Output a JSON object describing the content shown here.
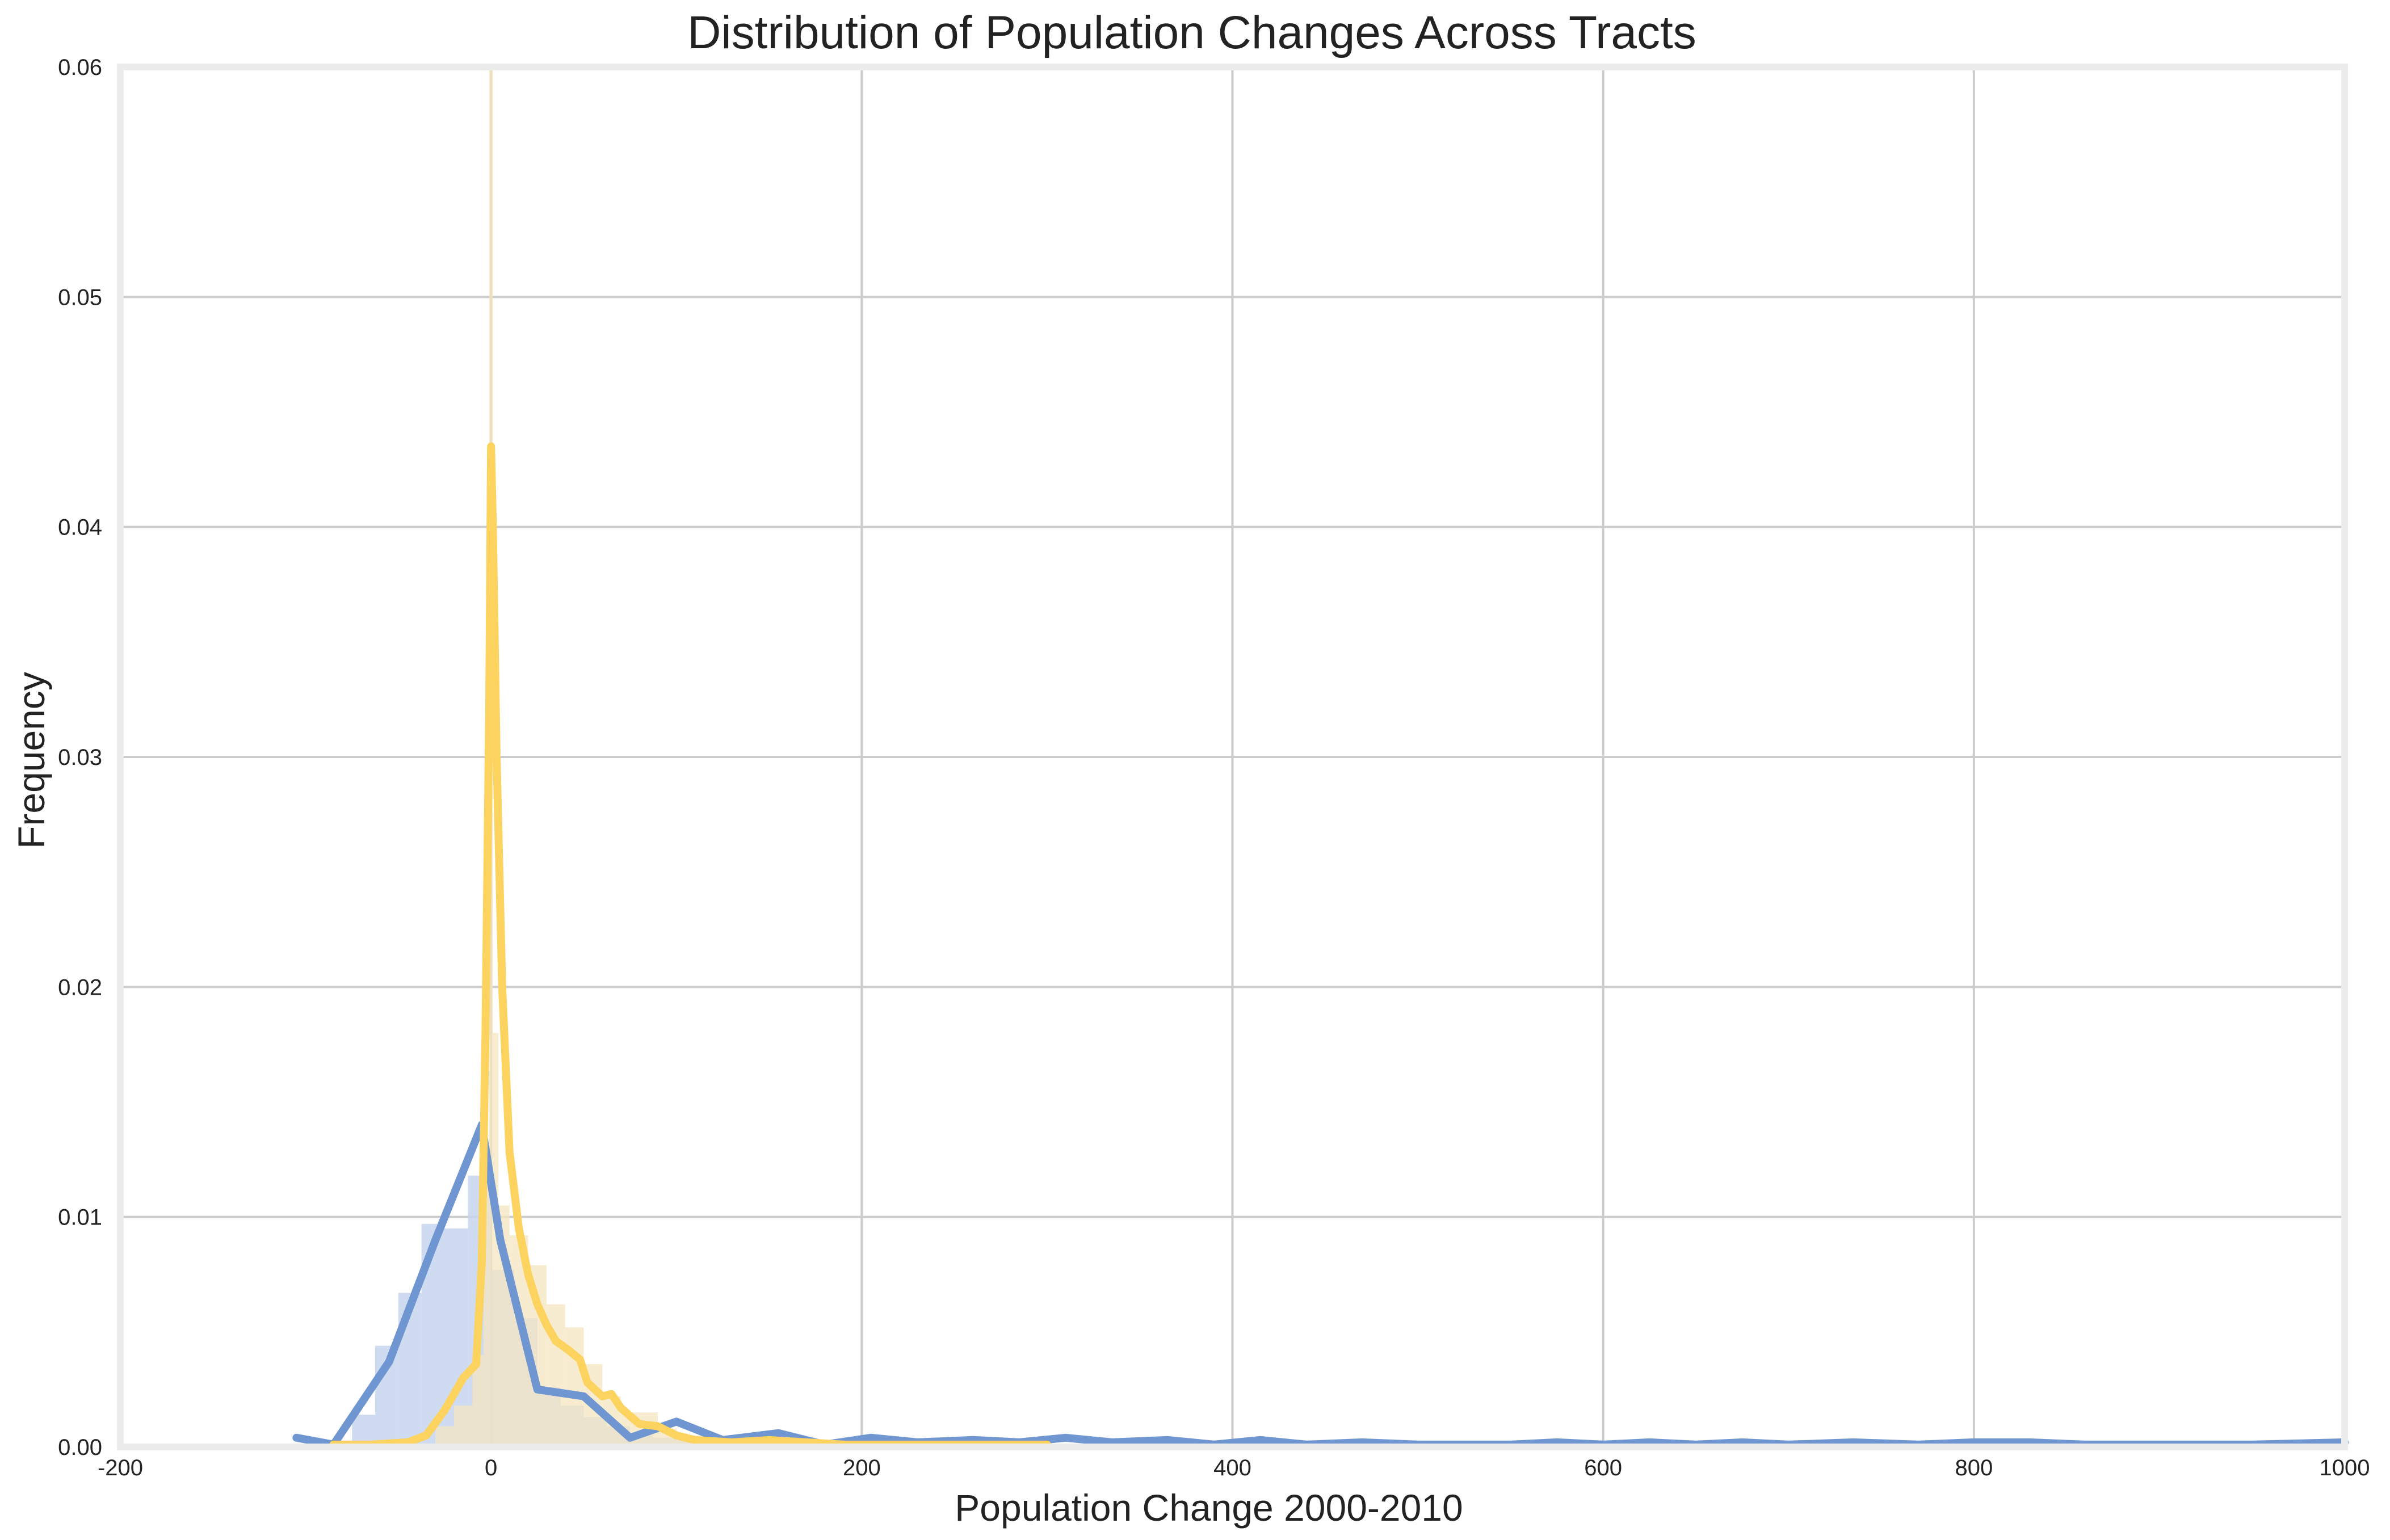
{
  "chart_data": {
    "type": "histogram-kde",
    "title": "Distribution of Population Changes Across Tracts",
    "xlabel": "Population Change 2000-2010",
    "ylabel": "Frequency",
    "xlim": [
      -200,
      1000
    ],
    "ylim": [
      0,
      0.06
    ],
    "x_ticks": [
      "-200",
      "0",
      "200",
      "400",
      "600",
      "800",
      "1000"
    ],
    "y_ticks": [
      "0.00",
      "0.01",
      "0.02",
      "0.03",
      "0.04",
      "0.05",
      "0.06"
    ],
    "grid": true,
    "legend": "none",
    "colors": {
      "series_a": "#6f96d0",
      "series_a_hist": "#c6d5ef",
      "series_b": "#fdd35f",
      "series_b_hist": "#f4e6c0"
    },
    "series": [
      {
        "histogram": {
          "bins": [
            {
              "x0": -75,
              "x1": -62.5,
              "value": 0.0014
            },
            {
              "x0": -62.5,
              "x1": -50,
              "value": 0.0044
            },
            {
              "x0": -50,
              "x1": -37.5,
              "value": 0.0067
            },
            {
              "x0": -37.5,
              "x1": -25,
              "value": 0.0097
            },
            {
              "x0": -25,
              "x1": -12.5,
              "value": 0.0095
            },
            {
              "x0": -12.5,
              "x1": 0,
              "value": 0.0118
            },
            {
              "x0": 0,
              "x1": 12.5,
              "value": 0.0077
            },
            {
              "x0": 12.5,
              "x1": 25,
              "value": 0.0056
            },
            {
              "x0": 25,
              "x1": 37.5,
              "value": 0.0026
            },
            {
              "x0": 37.5,
              "x1": 50,
              "value": 0.0018
            },
            {
              "x0": 50,
              "x1": 62.5,
              "value": 0.0013
            },
            {
              "x0": 62.5,
              "x1": 75,
              "value": 0.0009
            },
            {
              "x0": 75,
              "x1": 87.5,
              "value": 0.0005
            },
            {
              "x0": 87.5,
              "x1": 100,
              "value": 0.0004
            },
            {
              "x0": 100,
              "x1": 112.5,
              "value": 0.0003
            },
            {
              "x0": 112.5,
              "x1": 125,
              "value": 0.0002
            },
            {
              "x0": 125,
              "x1": 150,
              "value": 0.0002
            },
            {
              "x0": 150,
              "x1": 175,
              "value": 0.0001
            }
          ]
        },
        "kde": [
          [
            -105,
            0.0004
          ],
          [
            -85,
            0.0001
          ],
          [
            -55,
            0.0037
          ],
          [
            -30,
            0.009
          ],
          [
            -5,
            0.014
          ],
          [
            5,
            0.009
          ],
          [
            25,
            0.0025
          ],
          [
            50,
            0.0022
          ],
          [
            75,
            0.0004
          ],
          [
            100,
            0.0011
          ],
          [
            125,
            0.0003
          ],
          [
            155,
            0.0006
          ],
          [
            180,
            0.0001
          ],
          [
            205,
            0.0004
          ],
          [
            230,
            0.0002
          ],
          [
            260,
            0.0003
          ],
          [
            285,
            0.0002
          ],
          [
            310,
            0.0004
          ],
          [
            335,
            0.0002
          ],
          [
            365,
            0.0003
          ],
          [
            390,
            0.0001
          ],
          [
            415,
            0.0003
          ],
          [
            440,
            0.0001
          ],
          [
            470,
            0.0002
          ],
          [
            500,
            0.0001
          ],
          [
            530,
            0.0001
          ],
          [
            550,
            0.0001
          ],
          [
            575,
            0.0002
          ],
          [
            600,
            0.0001
          ],
          [
            625,
            0.0002
          ],
          [
            650,
            0.0001
          ],
          [
            675,
            0.0002
          ],
          [
            700,
            0.0001
          ],
          [
            735,
            0.0002
          ],
          [
            770,
            0.0001
          ],
          [
            800,
            0.0002
          ],
          [
            830,
            0.0002
          ],
          [
            860,
            0.0001
          ],
          [
            900,
            0.0001
          ],
          [
            950,
            0.0001
          ],
          [
            1000,
            0.0002
          ]
        ]
      },
      {
        "histogram": {
          "bins": [
            {
              "x0": -30,
              "x1": -20,
              "value": 0.0009
            },
            {
              "x0": -20,
              "x1": -10,
              "value": 0.0018
            },
            {
              "x0": -10,
              "x1": -4,
              "value": 0.004
            },
            {
              "x0": -4,
              "x1": -1,
              "value": 0.012
            },
            {
              "x0": -1,
              "x1": 1,
              "value": 0.06
            },
            {
              "x0": 1,
              "x1": 4,
              "value": 0.018
            },
            {
              "x0": 4,
              "x1": 10,
              "value": 0.0105
            },
            {
              "x0": 10,
              "x1": 20,
              "value": 0.0092
            },
            {
              "x0": 20,
              "x1": 30,
              "value": 0.0079
            },
            {
              "x0": 30,
              "x1": 40,
              "value": 0.0062
            },
            {
              "x0": 40,
              "x1": 50,
              "value": 0.0052
            },
            {
              "x0": 50,
              "x1": 60,
              "value": 0.0036
            },
            {
              "x0": 60,
              "x1": 70,
              "value": 0.0022
            },
            {
              "x0": 70,
              "x1": 80,
              "value": 0.0015
            },
            {
              "x0": 80,
              "x1": 90,
              "value": 0.0015
            },
            {
              "x0": 90,
              "x1": 100,
              "value": 0.0008
            },
            {
              "x0": 100,
              "x1": 120,
              "value": 0.0005
            },
            {
              "x0": 120,
              "x1": 140,
              "value": 0.0003
            },
            {
              "x0": 140,
              "x1": 170,
              "value": 0.0002
            }
          ]
        },
        "kde": [
          [
            -85,
            0.0001
          ],
          [
            -65,
            0.0001
          ],
          [
            -45,
            0.0002
          ],
          [
            -35,
            0.0005
          ],
          [
            -25,
            0.0016
          ],
          [
            -15,
            0.003
          ],
          [
            -8,
            0.0036
          ],
          [
            -5,
            0.008
          ],
          [
            -3,
            0.018
          ],
          [
            -1,
            0.032
          ],
          [
            0,
            0.0435
          ],
          [
            1,
            0.04
          ],
          [
            3,
            0.03
          ],
          [
            6,
            0.02
          ],
          [
            10,
            0.0128
          ],
          [
            15,
            0.0095
          ],
          [
            20,
            0.0075
          ],
          [
            25,
            0.0062
          ],
          [
            30,
            0.0053
          ],
          [
            35,
            0.0046
          ],
          [
            42,
            0.0042
          ],
          [
            48,
            0.0038
          ],
          [
            52,
            0.0028
          ],
          [
            60,
            0.0022
          ],
          [
            65,
            0.0023
          ],
          [
            70,
            0.0017
          ],
          [
            80,
            0.001
          ],
          [
            90,
            0.0009
          ],
          [
            100,
            0.0005
          ],
          [
            110,
            0.0003
          ],
          [
            130,
            0.0002
          ],
          [
            150,
            0.0003
          ],
          [
            170,
            0.0002
          ],
          [
            190,
            0.0001
          ],
          [
            220,
            0.0001
          ],
          [
            250,
            0.0001
          ],
          [
            280,
            0.0001
          ],
          [
            300,
            0.0001
          ]
        ]
      }
    ]
  }
}
